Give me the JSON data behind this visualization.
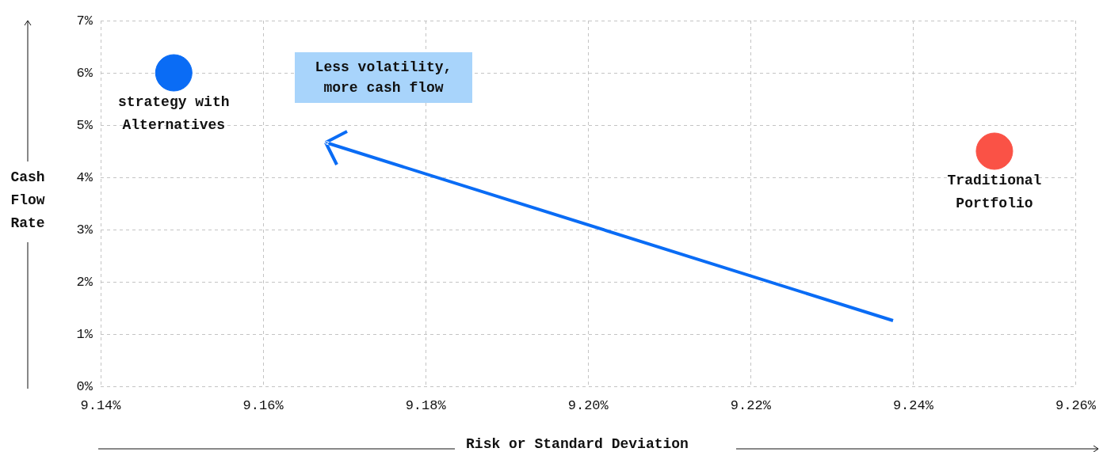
{
  "chart_data": {
    "type": "scatter",
    "xlabel": "Risk or Standard Deviation",
    "ylabel": "Cash Flow Rate",
    "annotations": [
      "Less volatility, more cash flow"
    ],
    "series": [
      {
        "name": "strategy with Alternatives",
        "color": "#0a6cf5",
        "x": [
          9.149
        ],
        "values": [
          6
        ]
      },
      {
        "name": "Traditional Portfolio",
        "color": "#fa5246",
        "x": [
          9.25
        ],
        "values": [
          4.5
        ]
      }
    ],
    "xlim": [
      9.14,
      9.26
    ],
    "xticks": [
      {
        "value": 9.14,
        "label": "9.14%"
      },
      {
        "value": 9.16,
        "label": "9.16%"
      },
      {
        "value": 9.18,
        "label": "9.18%"
      },
      {
        "value": 9.2,
        "label": "9.20%"
      },
      {
        "value": 9.22,
        "label": "9.22%"
      },
      {
        "value": 9.24,
        "label": "9.24%"
      },
      {
        "value": 9.26,
        "label": "9.26%"
      }
    ],
    "ylim": [
      0,
      7
    ],
    "yticks": [
      {
        "value": 0,
        "label": "0%"
      },
      {
        "value": 1,
        "label": "1%"
      },
      {
        "value": 2,
        "label": "2%"
      },
      {
        "value": 3,
        "label": "3%"
      },
      {
        "value": 4,
        "label": "4%"
      },
      {
        "value": 5,
        "label": "5%"
      },
      {
        "value": 6,
        "label": "6%"
      },
      {
        "value": 7,
        "label": "7%"
      }
    ],
    "grid": true,
    "legend": false,
    "marker": "circle"
  }
}
